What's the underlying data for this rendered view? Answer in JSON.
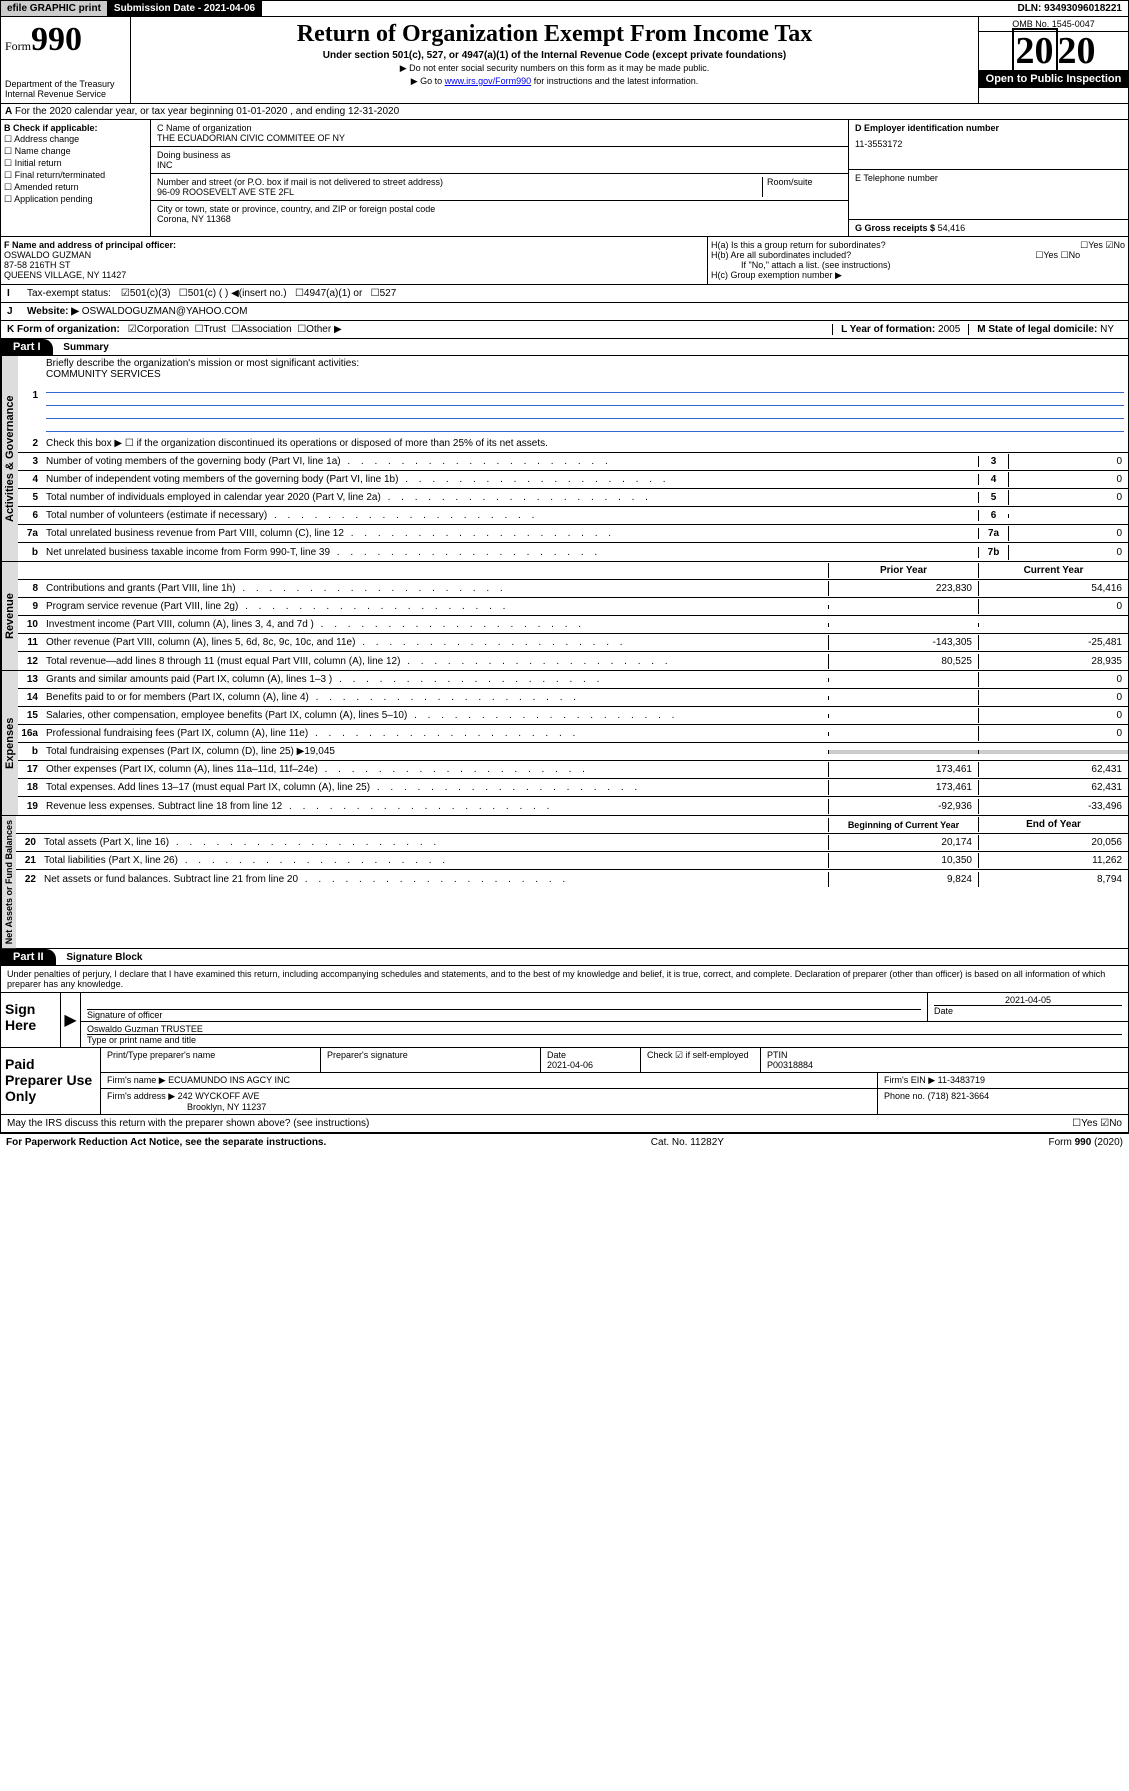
{
  "topbar": {
    "efile": "efile GRAPHIC print",
    "submit": "Submission Date - 2021-04-06",
    "dln": "DLN: 93493096018221"
  },
  "header": {
    "form_prefix": "Form",
    "form_num": "990",
    "title": "Return of Organization Exempt From Income Tax",
    "subtitle": "Under section 501(c), 527, or 4947(a)(1) of the Internal Revenue Code (except private foundations)",
    "note1": "▶ Do not enter social security numbers on this form as it may be made public.",
    "note2_pre": "▶ Go to ",
    "note2_link": "www.irs.gov/Form990",
    "note2_post": " for instructions and the latest information.",
    "omb": "OMB No. 1545-0047",
    "year": "2020",
    "open_pub": "Open to Public Inspection",
    "dept": "Department of the Treasury Internal Revenue Service"
  },
  "sectionA": {
    "text": "For the 2020 calendar year, or tax year beginning 01-01-2020   , and ending 12-31-2020"
  },
  "colB": {
    "label": "B Check if applicable:",
    "opts": [
      "Address change",
      "Name change",
      "Initial return",
      "Final return/terminated",
      "Amended return",
      "Application pending"
    ]
  },
  "colC": {
    "name_label": "C Name of organization",
    "name": "THE ECUADORIAN CIVIC COMMITEE OF NY",
    "dba_label": "Doing business as",
    "dba": "INC",
    "addr_label": "Number and street (or P.O. box if mail is not delivered to street address)",
    "room_label": "Room/suite",
    "addr": "96-09 ROOSEVELT AVE STE 2FL",
    "city_label": "City or town, state or province, country, and ZIP or foreign postal code",
    "city": "Corona, NY  11368"
  },
  "colD": {
    "ein_label": "D Employer identification number",
    "ein": "11-3553172",
    "tel_label": "E Telephone number",
    "gross_label": "G Gross receipts $",
    "gross": "54,416"
  },
  "rowF": {
    "label": "F  Name and address of principal officer:",
    "name": "OSWALDO GUZMAN",
    "addr1": "87-58 216TH ST",
    "addr2": "QUEENS VILLAGE, NY  11427"
  },
  "rowH": {
    "ha": "H(a)  Is this a group return for subordinates?",
    "hb": "H(b)  Are all subordinates included?",
    "hb_note": "If \"No,\" attach a list. (see instructions)",
    "hc": "H(c)  Group exemption number ▶",
    "yes": "Yes",
    "no": "No"
  },
  "rowI": {
    "label": "Tax-exempt status:",
    "opts": [
      "501(c)(3)",
      "501(c) (  ) ◀(insert no.)",
      "4947(a)(1) or",
      "527"
    ]
  },
  "rowJ": {
    "label": "Website: ▶",
    "value": "OSWALDOGUZMAN@YAHOO.COM"
  },
  "rowK": {
    "label": "K Form of organization:",
    "opts": [
      "Corporation",
      "Trust",
      "Association",
      "Other ▶"
    ],
    "l_label": "L Year of formation:",
    "l_val": "2005",
    "m_label": "M State of legal domicile:",
    "m_val": "NY"
  },
  "part1": {
    "label": "Part I",
    "title": "Summary",
    "sections": {
      "gov": "Activities & Governance",
      "rev": "Revenue",
      "exp": "Expenses",
      "net": "Net Assets or Fund Balances"
    },
    "line1_label": "Briefly describe the organization's mission or most significant activities:",
    "line1_val": "COMMUNITY SERVICES",
    "line2": "Check this box ▶ ☐  if the organization discontinued its operations or disposed of more than 25% of its net assets.",
    "lines_gov": [
      {
        "n": "3",
        "t": "Number of voting members of the governing body (Part VI, line 1a)",
        "box": "3",
        "v": "0"
      },
      {
        "n": "4",
        "t": "Number of independent voting members of the governing body (Part VI, line 1b)",
        "box": "4",
        "v": "0"
      },
      {
        "n": "5",
        "t": "Total number of individuals employed in calendar year 2020 (Part V, line 2a)",
        "box": "5",
        "v": "0"
      },
      {
        "n": "6",
        "t": "Total number of volunteers (estimate if necessary)",
        "box": "6",
        "v": ""
      },
      {
        "n": "7a",
        "t": "Total unrelated business revenue from Part VIII, column (C), line 12",
        "box": "7a",
        "v": "0"
      },
      {
        "n": "b",
        "t": "Net unrelated business taxable income from Form 990-T, line 39",
        "box": "7b",
        "v": "0"
      }
    ],
    "col_headers": {
      "prior": "Prior Year",
      "current": "Current Year"
    },
    "lines_rev": [
      {
        "n": "8",
        "t": "Contributions and grants (Part VIII, line 1h)",
        "p": "223,830",
        "c": "54,416"
      },
      {
        "n": "9",
        "t": "Program service revenue (Part VIII, line 2g)",
        "p": "",
        "c": "0"
      },
      {
        "n": "10",
        "t": "Investment income (Part VIII, column (A), lines 3, 4, and 7d )",
        "p": "",
        "c": ""
      },
      {
        "n": "11",
        "t": "Other revenue (Part VIII, column (A), lines 5, 6d, 8c, 9c, 10c, and 11e)",
        "p": "-143,305",
        "c": "-25,481"
      },
      {
        "n": "12",
        "t": "Total revenue—add lines 8 through 11 (must equal Part VIII, column (A), line 12)",
        "p": "80,525",
        "c": "28,935"
      }
    ],
    "lines_exp": [
      {
        "n": "13",
        "t": "Grants and similar amounts paid (Part IX, column (A), lines 1–3 )",
        "p": "",
        "c": "0"
      },
      {
        "n": "14",
        "t": "Benefits paid to or for members (Part IX, column (A), line 4)",
        "p": "",
        "c": "0"
      },
      {
        "n": "15",
        "t": "Salaries, other compensation, employee benefits (Part IX, column (A), lines 5–10)",
        "p": "",
        "c": "0"
      },
      {
        "n": "16a",
        "t": "Professional fundraising fees (Part IX, column (A), line 11e)",
        "p": "",
        "c": "0"
      },
      {
        "n": "b",
        "t": "Total fundraising expenses (Part IX, column (D), line 25) ▶19,045",
        "p": null,
        "c": null
      },
      {
        "n": "17",
        "t": "Other expenses (Part IX, column (A), lines 11a–11d, 11f–24e)",
        "p": "173,461",
        "c": "62,431"
      },
      {
        "n": "18",
        "t": "Total expenses. Add lines 13–17 (must equal Part IX, column (A), line 25)",
        "p": "173,461",
        "c": "62,431"
      },
      {
        "n": "19",
        "t": "Revenue less expenses. Subtract line 18 from line 12",
        "p": "-92,936",
        "c": "-33,496"
      }
    ],
    "col_headers2": {
      "begin": "Beginning of Current Year",
      "end": "End of Year"
    },
    "lines_net": [
      {
        "n": "20",
        "t": "Total assets (Part X, line 16)",
        "p": "20,174",
        "c": "20,056"
      },
      {
        "n": "21",
        "t": "Total liabilities (Part X, line 26)",
        "p": "10,350",
        "c": "11,262"
      },
      {
        "n": "22",
        "t": "Net assets or fund balances. Subtract line 21 from line 20",
        "p": "9,824",
        "c": "8,794"
      }
    ]
  },
  "part2": {
    "label": "Part II",
    "title": "Signature Block",
    "perjury": "Under penalties of perjury, I declare that I have examined this return, including accompanying schedules and statements, and to the best of my knowledge and belief, it is true, correct, and complete. Declaration of preparer (other than officer) is based on all information of which preparer has any knowledge.",
    "sign_here": "Sign Here",
    "sig_officer": "Signature of officer",
    "date": "Date",
    "date_val": "2021-04-05",
    "name_title": "Oswaldo Guzman TRUSTEE",
    "type_name": "Type or print name and title",
    "paid_prep": "Paid Preparer Use Only",
    "prep_name_label": "Print/Type preparer's name",
    "prep_sig_label": "Preparer's signature",
    "prep_date": "2021-04-06",
    "check_label": "Check ☑ if self-employed",
    "ptin_label": "PTIN",
    "ptin": "P00318884",
    "firm_name_label": "Firm's name    ▶",
    "firm_name": "ECUAMUNDO INS AGCY INC",
    "firm_ein_label": "Firm's EIN ▶",
    "firm_ein": "11-3483719",
    "firm_addr_label": "Firm's address ▶",
    "firm_addr": "242 WYCKOFF AVE",
    "firm_city": "Brooklyn, NY  11237",
    "phone_label": "Phone no.",
    "phone": "(718) 821-3664",
    "discuss": "May the IRS discuss this return with the preparer shown above? (see instructions)"
  },
  "footer": {
    "left": "For Paperwork Reduction Act Notice, see the separate instructions.",
    "mid": "Cat. No. 11282Y",
    "right": "Form 990 (2020)"
  }
}
